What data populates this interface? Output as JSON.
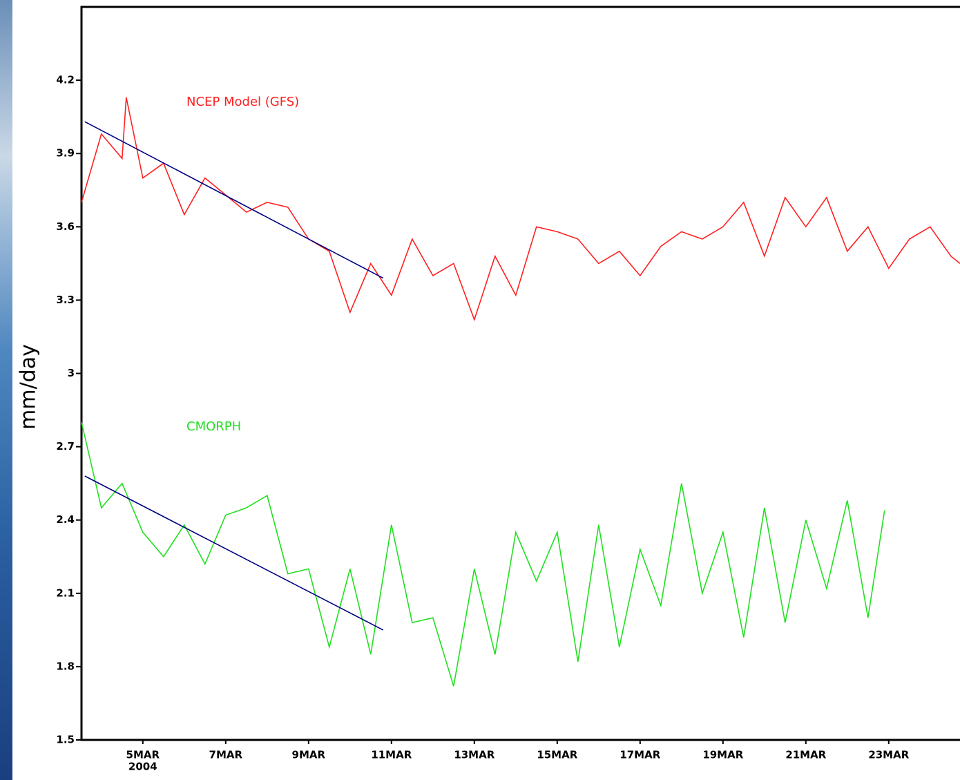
{
  "chart_data": {
    "type": "line",
    "y_label": "mm/day",
    "x_sublabel": "2004",
    "xlim": [
      3.52,
      24.72
    ],
    "xticks": [
      {
        "value": 5,
        "label": "5MAR"
      },
      {
        "value": 7,
        "label": "7MAR"
      },
      {
        "value": 9,
        "label": "9MAR"
      },
      {
        "value": 11,
        "label": "11MAR"
      },
      {
        "value": 13,
        "label": "13MAR"
      },
      {
        "value": 15,
        "label": "15MAR"
      },
      {
        "value": 17,
        "label": "17MAR"
      },
      {
        "value": 19,
        "label": "19MAR"
      },
      {
        "value": 21,
        "label": "21MAR"
      },
      {
        "value": 23,
        "label": "23MAR"
      }
    ],
    "ylim": [
      1.5,
      4.5
    ],
    "yticks": [
      1.5,
      1.8,
      2.1,
      2.4,
      2.7,
      3,
      3.3,
      3.6,
      3.9,
      4.2
    ],
    "series": [
      {
        "name": "NCEP Model (GFS)",
        "color": "#ff2020",
        "x": [
          3.52,
          4.0,
          4.5,
          4.6,
          5.0,
          5.5,
          6.0,
          6.5,
          7.0,
          7.5,
          8.0,
          8.5,
          9.0,
          9.5,
          10.0,
          10.5,
          11.0,
          11.5,
          12.0,
          12.5,
          13.0,
          13.5,
          14.0,
          14.5,
          15.0,
          15.5,
          16.0,
          16.5,
          17.0,
          17.5,
          18.0,
          18.5,
          19.0,
          19.5,
          20.0,
          20.5,
          21.0,
          21.5,
          22.0,
          22.5,
          23.0,
          23.5,
          24.0,
          24.5,
          24.72
        ],
        "values": [
          3.7,
          3.98,
          3.88,
          4.13,
          3.8,
          3.86,
          3.65,
          3.8,
          3.73,
          3.66,
          3.7,
          3.68,
          3.55,
          3.5,
          3.25,
          3.45,
          3.32,
          3.55,
          3.4,
          3.45,
          3.22,
          3.48,
          3.32,
          3.6,
          3.58,
          3.55,
          3.45,
          3.5,
          3.4,
          3.52,
          3.58,
          3.55,
          3.6,
          3.7,
          3.48,
          3.72,
          3.6,
          3.72,
          3.5,
          3.6,
          3.43,
          3.55,
          3.6,
          3.48,
          3.45
        ]
      },
      {
        "name": "CMORPH",
        "color": "#20e020",
        "x": [
          3.52,
          4.0,
          4.5,
          5.0,
          5.5,
          6.0,
          6.5,
          7.0,
          7.5,
          8.0,
          8.5,
          9.0,
          9.5,
          10.0,
          10.5,
          11.0,
          11.5,
          12.0,
          12.5,
          13.0,
          13.5,
          14.0,
          14.5,
          15.0,
          15.5,
          16.0,
          16.5,
          17.0,
          17.5,
          18.0,
          18.5,
          19.0,
          19.5,
          20.0,
          20.5,
          21.0,
          21.5,
          22.0,
          22.5,
          22.9
        ],
        "values": [
          2.8,
          2.45,
          2.55,
          2.35,
          2.25,
          2.38,
          2.22,
          2.42,
          2.45,
          2.5,
          2.18,
          2.2,
          1.88,
          2.2,
          1.85,
          2.38,
          1.98,
          2.0,
          1.72,
          2.2,
          1.85,
          2.35,
          2.15,
          2.35,
          1.82,
          2.38,
          1.88,
          2.28,
          2.05,
          2.55,
          2.1,
          2.35,
          1.92,
          2.45,
          1.98,
          2.4,
          2.12,
          2.48,
          2.0,
          2.44
        ]
      }
    ],
    "trend_lines": [
      {
        "color": "#000080",
        "x": [
          3.6,
          10.8
        ],
        "values": [
          4.03,
          3.39
        ]
      },
      {
        "color": "#000080",
        "x": [
          3.6,
          10.8
        ],
        "values": [
          2.58,
          1.95
        ]
      }
    ]
  }
}
